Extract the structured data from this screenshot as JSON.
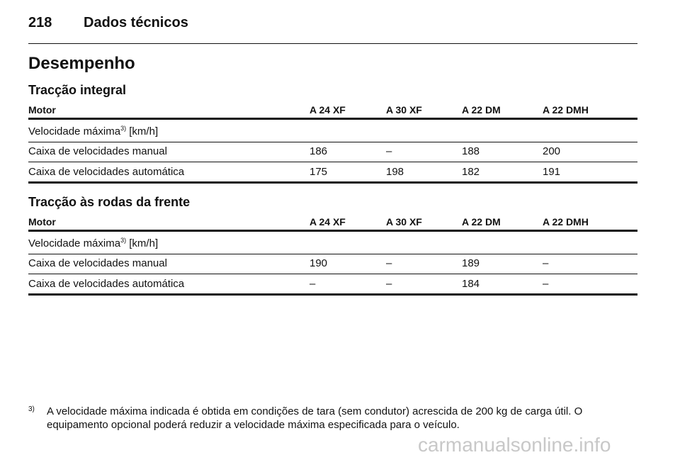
{
  "header": {
    "page": "218",
    "title": "Dados técnicos"
  },
  "heading": "Desempenho",
  "sections": [
    {
      "title": "Tracção integral",
      "columns": [
        "Motor",
        "A 24 XF",
        "A 30 XF",
        "A 22 DM",
        "A 22 DMH"
      ],
      "subheading": {
        "text": "Velocidade máxima",
        "note": "3)",
        "unit": "[km/h]"
      },
      "rows": [
        [
          "Caixa de velocidades manual",
          "186",
          "–",
          "188",
          "200"
        ],
        [
          "Caixa de velocidades automática",
          "175",
          "198",
          "182",
          "191"
        ]
      ]
    },
    {
      "title": "Tracção às rodas da frente",
      "columns": [
        "Motor",
        "A 24 XF",
        "A 30 XF",
        "A 22 DM",
        "A 22 DMH"
      ],
      "subheading": {
        "text": "Velocidade máxima",
        "note": "3)",
        "unit": "[km/h]"
      },
      "rows": [
        [
          "Caixa de velocidades manual",
          "190",
          "–",
          "189",
          "–"
        ],
        [
          "Caixa de velocidades automática",
          "–",
          "–",
          "184",
          "–"
        ]
      ]
    }
  ],
  "footnote": {
    "mark": "3)",
    "lines": [
      "A velocidade máxima indicada é obtida em condições de tara (sem condutor) acrescida de 200 kg de carga útil. O",
      "equipamento opcional poderá reduzir a velocidade máxima especificada para o veículo."
    ]
  },
  "watermark": "carmanualsonline.info"
}
